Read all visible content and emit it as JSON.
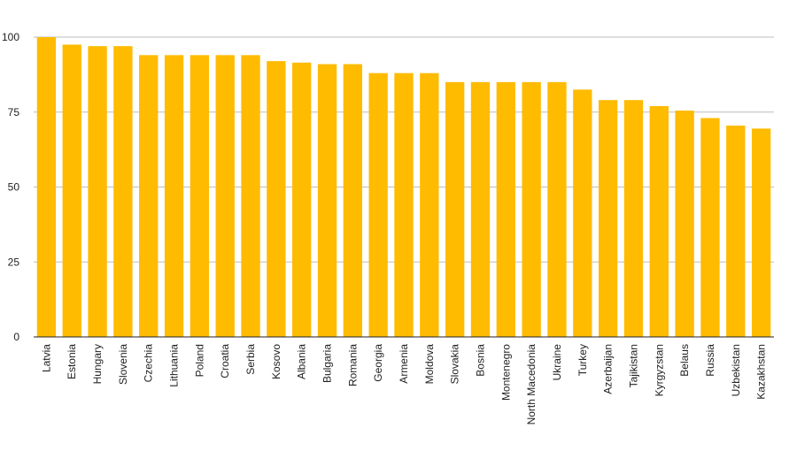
{
  "chart_data": {
    "type": "bar",
    "title": "",
    "xlabel": "",
    "ylabel": "",
    "ylim": [
      0,
      100
    ],
    "yticks": [
      0,
      25,
      50,
      75,
      100
    ],
    "grid": true,
    "legend": "none",
    "bar_color": "#FFBB00",
    "categories": [
      "Latvia",
      "Estonia",
      "Hungary",
      "Slovenia",
      "Czechia",
      "Lithuania",
      "Poland",
      "Croatia",
      "Serbia",
      "Kosovo",
      "Albania",
      "Bulgaria",
      "Romania",
      "Georgia",
      "Armenia",
      "Moldova",
      "Slovakia",
      "Bosnia",
      "Montenegro",
      "North Macedonia",
      "Ukraine",
      "Turkey",
      "Azerbaijan",
      "Tajikistan",
      "Kyrgyzstan",
      "Belaus",
      "Russia",
      "Uzbekistan",
      "Kazakhstan"
    ],
    "values": [
      100,
      97.5,
      97,
      97,
      94,
      94,
      94,
      94,
      94,
      92,
      91.5,
      91,
      91,
      88,
      88,
      88,
      85,
      85,
      85,
      85,
      85,
      82.5,
      79,
      79,
      77,
      75.5,
      73,
      70.5,
      69.5
    ]
  }
}
